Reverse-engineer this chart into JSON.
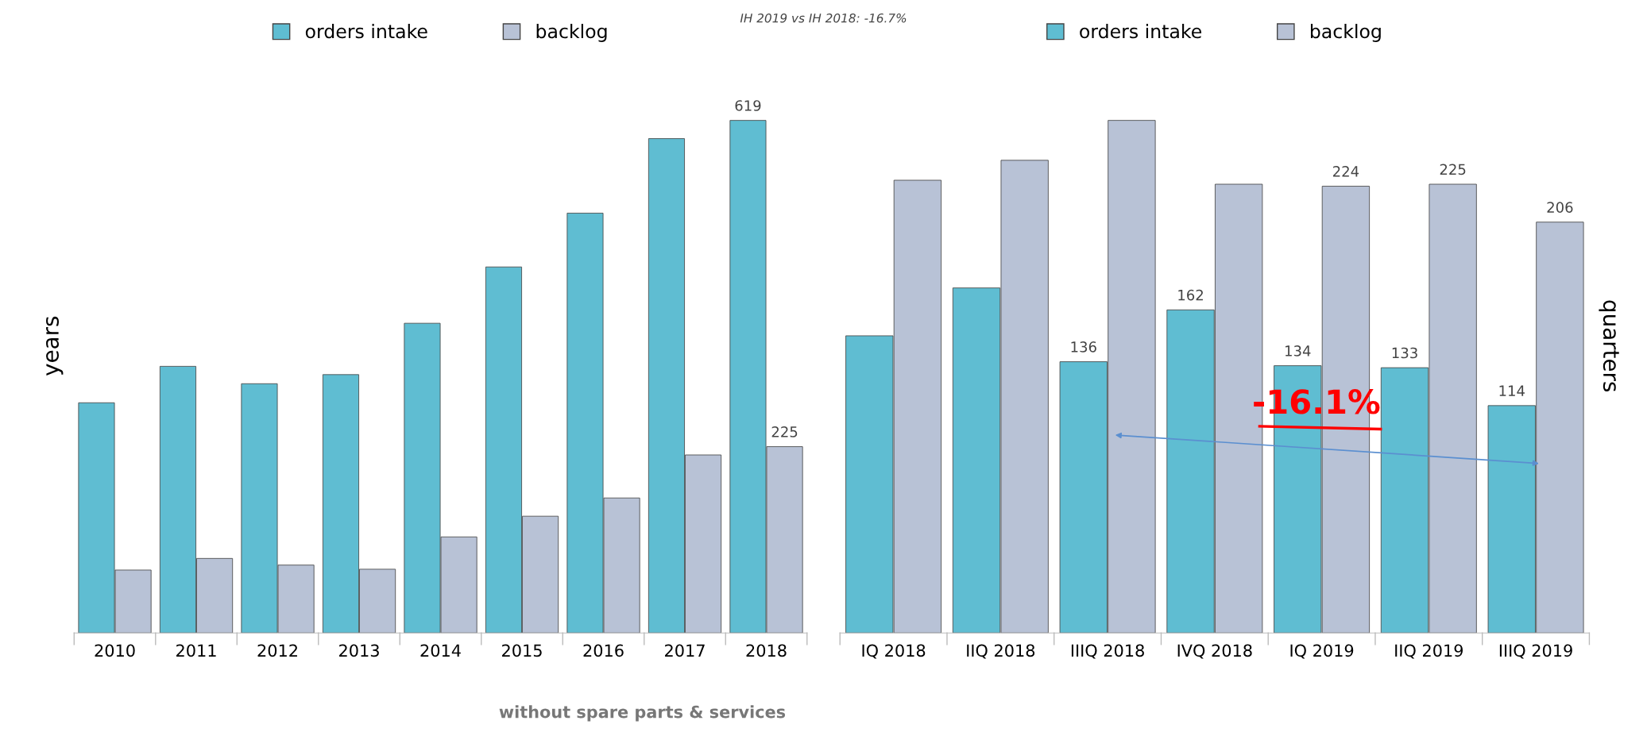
{
  "chart_data": [
    {
      "type": "bar",
      "title": "IH 2019 vs IH 2018: -16.7%",
      "ylabel": "years",
      "legend": "top",
      "categories": [
        "2010",
        "2011",
        "2012",
        "2013",
        "2014",
        "2015",
        "2016",
        "2017",
        "2018"
      ],
      "series": [
        {
          "name": "orders intake",
          "color": "#5fbdd2",
          "values": [
            278,
            322,
            301,
            312,
            374,
            442,
            507,
            597,
            619
          ],
          "value_labels": [
            null,
            null,
            null,
            null,
            null,
            null,
            null,
            null,
            "619"
          ]
        },
        {
          "name": "backlog",
          "color": "#b8c2d6",
          "values": [
            76,
            90,
            82,
            77,
            116,
            141,
            163,
            215,
            225
          ],
          "value_labels": [
            null,
            null,
            null,
            null,
            null,
            null,
            null,
            null,
            "225"
          ]
        }
      ],
      "annotations": [
        "without spare parts & services"
      ]
    },
    {
      "type": "bar",
      "ylabel": "quarters",
      "legend": "top",
      "categories": [
        "IQ 2018",
        "IIQ 2018",
        "IIIQ 2018",
        "IVQ 2018",
        "IQ 2019",
        "IIQ 2019",
        "IIIQ 2019"
      ],
      "series": [
        {
          "name": "orders intake",
          "color": "#5fbdd2",
          "values": [
            149,
            173,
            136,
            162,
            134,
            133,
            114
          ],
          "value_labels": [
            null,
            null,
            "136",
            "162",
            "134",
            "133",
            "114"
          ]
        },
        {
          "name": "backlog",
          "color": "#b8c2d6",
          "values": [
            227,
            237,
            257,
            225,
            224,
            225,
            206
          ],
          "value_labels": [
            null,
            null,
            null,
            null,
            "224",
            "225",
            "206"
          ]
        }
      ],
      "annotations": [
        "-16.1%"
      ]
    }
  ]
}
